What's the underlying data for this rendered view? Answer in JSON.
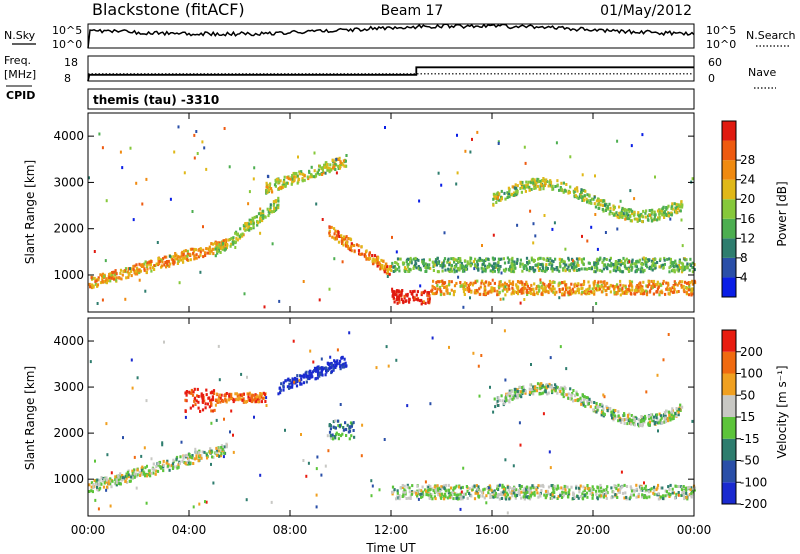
{
  "header": {
    "station": "Blackstone (fitACF)",
    "beam": "Beam 17",
    "date": "01/May/2012"
  },
  "top_panel": {
    "left_label": "N.Sky",
    "left_ticks": [
      "10^5",
      "10^0"
    ],
    "right_label": "N.Search",
    "right_ticks": [
      "10^5",
      "10^0"
    ]
  },
  "freq_panel": {
    "left_label_1": "Freq.",
    "left_label_2": "[MHz]",
    "left_ticks": [
      "18",
      "8"
    ],
    "right_label": "Nave",
    "right_ticks": [
      "60",
      "0"
    ]
  },
  "cpid": {
    "label": "CPID",
    "value": "themis (tau) -3310"
  },
  "colors": {
    "axis": "#000000",
    "velocity_ground": "#c8c8c4"
  },
  "chart_data": [
    {
      "type": "line",
      "name": "noise",
      "ylabel": "N.Sky",
      "y_scale": "log",
      "ylim": [
        1,
        100000
      ],
      "note": "sky noise trace, roughly flat near 10^4 across the day"
    },
    {
      "type": "line",
      "name": "frequency",
      "ylabel": "Freq. [MHz]",
      "ylim": [
        8,
        18
      ],
      "x_hours": [
        0,
        0.05,
        13.0,
        13.0,
        24.0
      ],
      "freq": [
        8,
        10.5,
        10.5,
        13.5,
        13.5
      ],
      "nave_x": [
        0,
        24
      ],
      "nave": [
        10,
        10
      ]
    },
    {
      "type": "heatmap",
      "name": "power",
      "xlabel": "Time UT",
      "ylabel": "Slant Range [km]",
      "xlim": [
        0,
        24
      ],
      "ylim": [
        200,
        4500
      ],
      "x_ticks": [
        "00:00",
        "04:00",
        "08:00",
        "12:00",
        "16:00",
        "20:00",
        "00:00"
      ],
      "y_ticks": [
        1000,
        2000,
        3000,
        4000
      ],
      "colorbar_label": "Power [dB]",
      "colorbar_ticks": [
        4,
        8,
        12,
        16,
        20,
        24,
        28
      ],
      "colorbar_colors": [
        "#0a1ee6",
        "#2a4fa8",
        "#2e7d6e",
        "#4cae50",
        "#86c83a",
        "#e0b818",
        "#f08a10",
        "#ee5a10",
        "#e01a10"
      ],
      "scatter_bands": [
        {
          "t0": 0.0,
          "t1": 5.5,
          "r0": 850,
          "r1": 1700,
          "slope": 1,
          "level": 0.7
        },
        {
          "t0": 5.0,
          "t1": 7.5,
          "r0": 1500,
          "r1": 2600,
          "slope": 1,
          "level": 0.5
        },
        {
          "t0": 7.0,
          "t1": 10.2,
          "r0": 2900,
          "r1": 3500,
          "slope": 1,
          "level": 0.55
        },
        {
          "t0": 9.5,
          "t1": 12.0,
          "r0": 1100,
          "r1": 2000,
          "slope": -1,
          "level": 0.75
        },
        {
          "t0": 12.0,
          "t1": 13.5,
          "r0": 400,
          "r1": 700,
          "slope": 0,
          "level": 1.0
        },
        {
          "t0": 13.5,
          "t1": 24.0,
          "r0": 600,
          "r1": 900,
          "slope": 0,
          "level": 0.7
        },
        {
          "t0": 16.0,
          "t1": 23.5,
          "r0": 2300,
          "r1": 3000,
          "slope": 2,
          "level": 0.5
        },
        {
          "t0": 12.0,
          "t1": 24.0,
          "r0": 1100,
          "r1": 1400,
          "slope": 0,
          "level": 0.4
        }
      ]
    },
    {
      "type": "heatmap",
      "name": "velocity",
      "xlabel": "Time UT",
      "ylabel": "Slant Range [km]",
      "xlim": [
        0,
        24
      ],
      "ylim": [
        200,
        4500
      ],
      "x_ticks": [
        "00:00",
        "04:00",
        "08:00",
        "12:00",
        "16:00",
        "20:00",
        "00:00"
      ],
      "y_ticks": [
        1000,
        2000,
        3000,
        4000
      ],
      "colorbar_label": "Velocity [m s⁻¹]",
      "colorbar_ticks": [
        200,
        100,
        50,
        15,
        -15,
        -50,
        -100,
        -200
      ],
      "colorbar_colors": [
        "#1a2ad0",
        "#2a4fa8",
        "#2e7d6e",
        "#5cc43a",
        "#c8c8c4",
        "#f0a020",
        "#f06a10",
        "#e81c10"
      ],
      "scatter_bands": [
        {
          "t0": 0.0,
          "t1": 5.5,
          "r0": 850,
          "r1": 1700,
          "slope": 1,
          "level": 0.5
        },
        {
          "t0": 3.8,
          "t1": 5.0,
          "r0": 2500,
          "r1": 3000,
          "slope": 0,
          "level": 0.95
        },
        {
          "t0": 5.0,
          "t1": 7.0,
          "r0": 2700,
          "r1": 2900,
          "slope": 0,
          "level": 0.8
        },
        {
          "t0": 7.5,
          "t1": 10.2,
          "r0": 3000,
          "r1": 3600,
          "slope": 1,
          "level": 0.05
        },
        {
          "t0": 9.5,
          "t1": 10.5,
          "r0": 1900,
          "r1": 2300,
          "slope": 0,
          "level": 0.35
        },
        {
          "t0": 12.0,
          "t1": 24.0,
          "r0": 600,
          "r1": 900,
          "slope": 0,
          "level": 0.5
        },
        {
          "t0": 16.0,
          "t1": 23.5,
          "r0": 2300,
          "r1": 3000,
          "slope": 2,
          "level": 0.5
        }
      ]
    }
  ]
}
